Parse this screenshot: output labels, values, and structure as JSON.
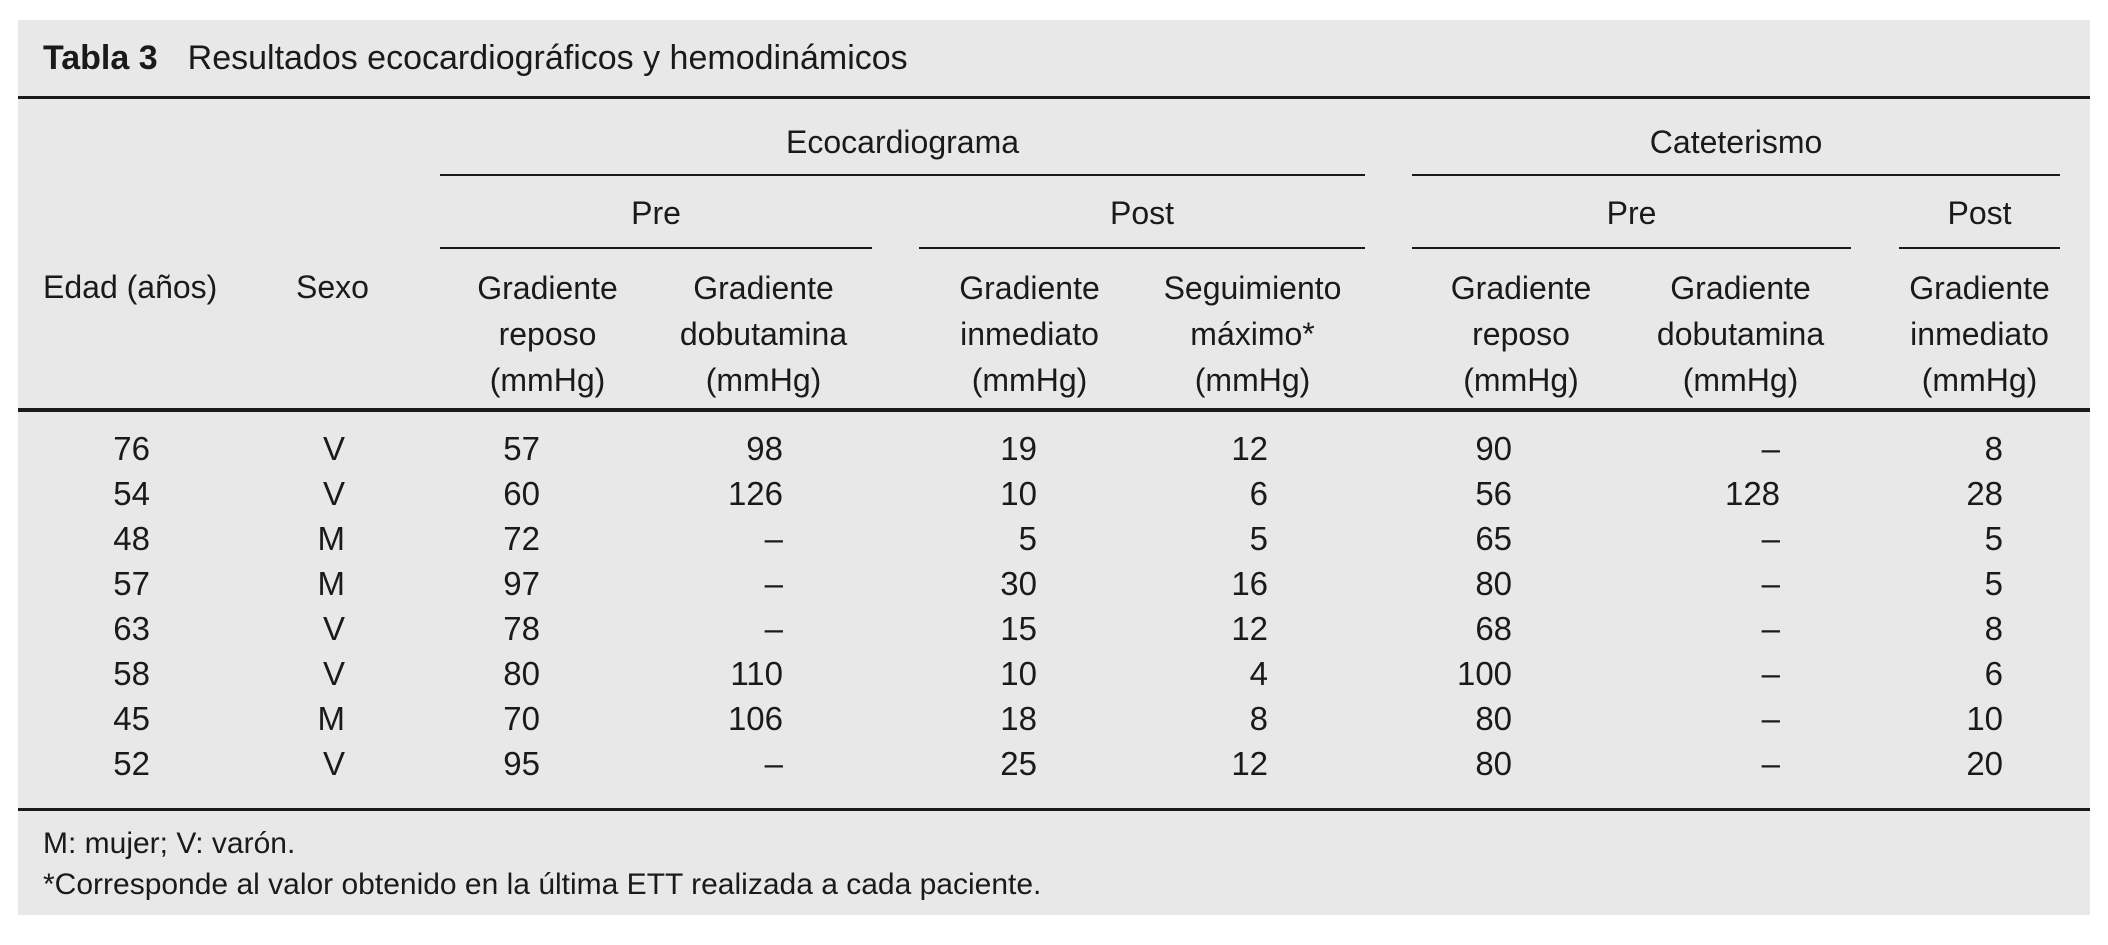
{
  "table": {
    "title_label": "Tabla 3",
    "title": "Resultados ecocardiográficos y hemodinámicos",
    "groups": {
      "ecocardiograma": "Ecocardiograma",
      "cateterismo": "Cateterismo"
    },
    "subgroups": {
      "pre": "Pre",
      "post": "Post"
    },
    "columns": {
      "edad": "Edad (años)",
      "sexo": "Sexo",
      "gradiente_reposo": "Gradiente\nreposo\n(mmHg)",
      "gradiente_dobutamina": "Gradiente\ndobutamina\n(mmHg)",
      "gradiente_inmediato": "Gradiente\ninmediato\n(mmHg)",
      "seguimiento_maximo": "Seguimiento\nmáximo*\n(mmHg)"
    },
    "rows": [
      [
        "76",
        "V",
        "57",
        "98",
        "19",
        "12",
        "90",
        "–",
        "8"
      ],
      [
        "54",
        "V",
        "60",
        "126",
        "10",
        "6",
        "56",
        "128",
        "28"
      ],
      [
        "48",
        "M",
        "72",
        "–",
        "5",
        "5",
        "65",
        "–",
        "5"
      ],
      [
        "57",
        "M",
        "97",
        "–",
        "30",
        "16",
        "80",
        "–",
        "5"
      ],
      [
        "63",
        "V",
        "78",
        "–",
        "15",
        "12",
        "68",
        "–",
        "8"
      ],
      [
        "58",
        "V",
        "80",
        "110",
        "10",
        "4",
        "100",
        "–",
        "6"
      ],
      [
        "45",
        "M",
        "70",
        "106",
        "18",
        "8",
        "80",
        "–",
        "10"
      ],
      [
        "52",
        "V",
        "95",
        "–",
        "25",
        "12",
        "80",
        "–",
        "20"
      ]
    ],
    "footnotes": [
      "M: mujer; V: varón.",
      "*Corresponde al valor obtenido en la última ETT realizada a cada paciente."
    ]
  },
  "colors": {
    "panel_bg": "#e8e8e8",
    "rule": "#1a1a1a",
    "text": "#1a1a1a"
  }
}
